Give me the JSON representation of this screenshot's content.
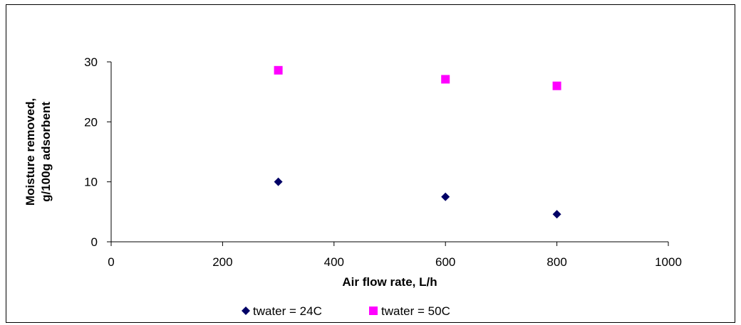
{
  "chart_data": {
    "type": "scatter",
    "title": "",
    "xlabel": "Air flow rate, L/h",
    "ylabel_lines": [
      "Moisture removed,",
      "g/100g adsorbent"
    ],
    "xlim": [
      0,
      1000
    ],
    "ylim": [
      0,
      30
    ],
    "x_ticks": [
      0,
      200,
      400,
      600,
      800,
      1000
    ],
    "y_ticks": [
      0,
      10,
      20,
      30
    ],
    "x_tick_labels": [
      "0",
      "200",
      "400",
      "600",
      "800",
      "1000"
    ],
    "y_tick_labels": [
      "0",
      "10",
      "20",
      "30"
    ],
    "grid": false,
    "legend_position": "bottom",
    "series": [
      {
        "name": "twater = 24C",
        "marker": "diamond",
        "color": "#000066",
        "points": [
          {
            "x": 300,
            "y": 10
          },
          {
            "x": 600,
            "y": 7.5
          },
          {
            "x": 800,
            "y": 4.6
          }
        ]
      },
      {
        "name": "twater = 50C",
        "marker": "square",
        "color": "#ff00ff",
        "points": [
          {
            "x": 300,
            "y": 28.6
          },
          {
            "x": 600,
            "y": 27.1
          },
          {
            "x": 800,
            "y": 26
          }
        ]
      }
    ]
  }
}
